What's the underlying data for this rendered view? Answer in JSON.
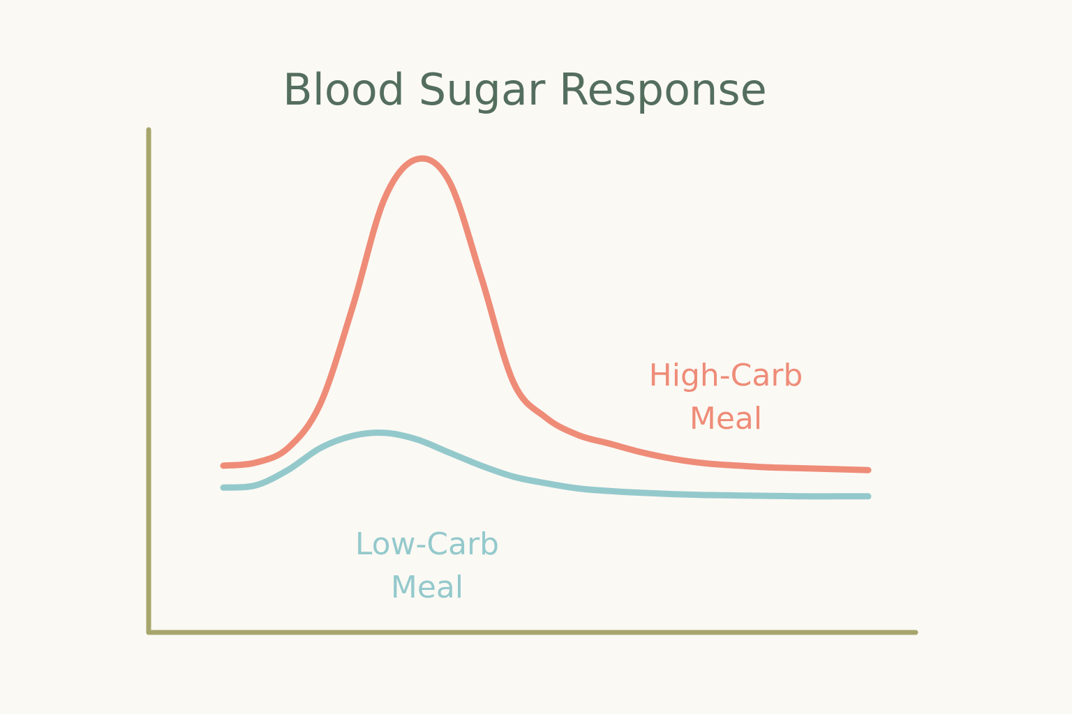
{
  "chart_data": {
    "type": "line",
    "title": "Blood Sugar Response",
    "xlabel": "",
    "ylabel": "",
    "xlim": [
      0,
      10
    ],
    "ylim": [
      0,
      10
    ],
    "grid": false,
    "legend": "inline labels",
    "x": [
      0,
      0.5,
      1,
      1.5,
      2,
      2.5,
      3,
      3.5,
      4,
      4.5,
      5,
      5.5,
      6,
      6.5,
      7,
      7.5,
      8,
      8.5,
      9,
      9.5,
      10
    ],
    "series": [
      {
        "name": "High-Carb Meal",
        "label_lines": [
          "High-Carb",
          "Meal"
        ],
        "color": "#ee8c78",
        "values": [
          2.9,
          2.97,
          3.3,
          4.3,
          6.5,
          9.0,
          9.9,
          9.4,
          7.2,
          4.8,
          4.0,
          3.6,
          3.4,
          3.2,
          3.05,
          2.95,
          2.9,
          2.86,
          2.84,
          2.82,
          2.8
        ]
      },
      {
        "name": "Low-Carb Meal",
        "label_lines": [
          "Low-Carb",
          "Meal"
        ],
        "color": "#94c9cc",
        "values": [
          2.4,
          2.45,
          2.8,
          3.3,
          3.58,
          3.65,
          3.5,
          3.2,
          2.9,
          2.65,
          2.5,
          2.38,
          2.32,
          2.28,
          2.25,
          2.23,
          2.22,
          2.21,
          2.2,
          2.2,
          2.2
        ]
      }
    ],
    "colors": {
      "title": "#546e5e",
      "axis": "#a6a66c",
      "background": "#fbf9f4"
    }
  }
}
